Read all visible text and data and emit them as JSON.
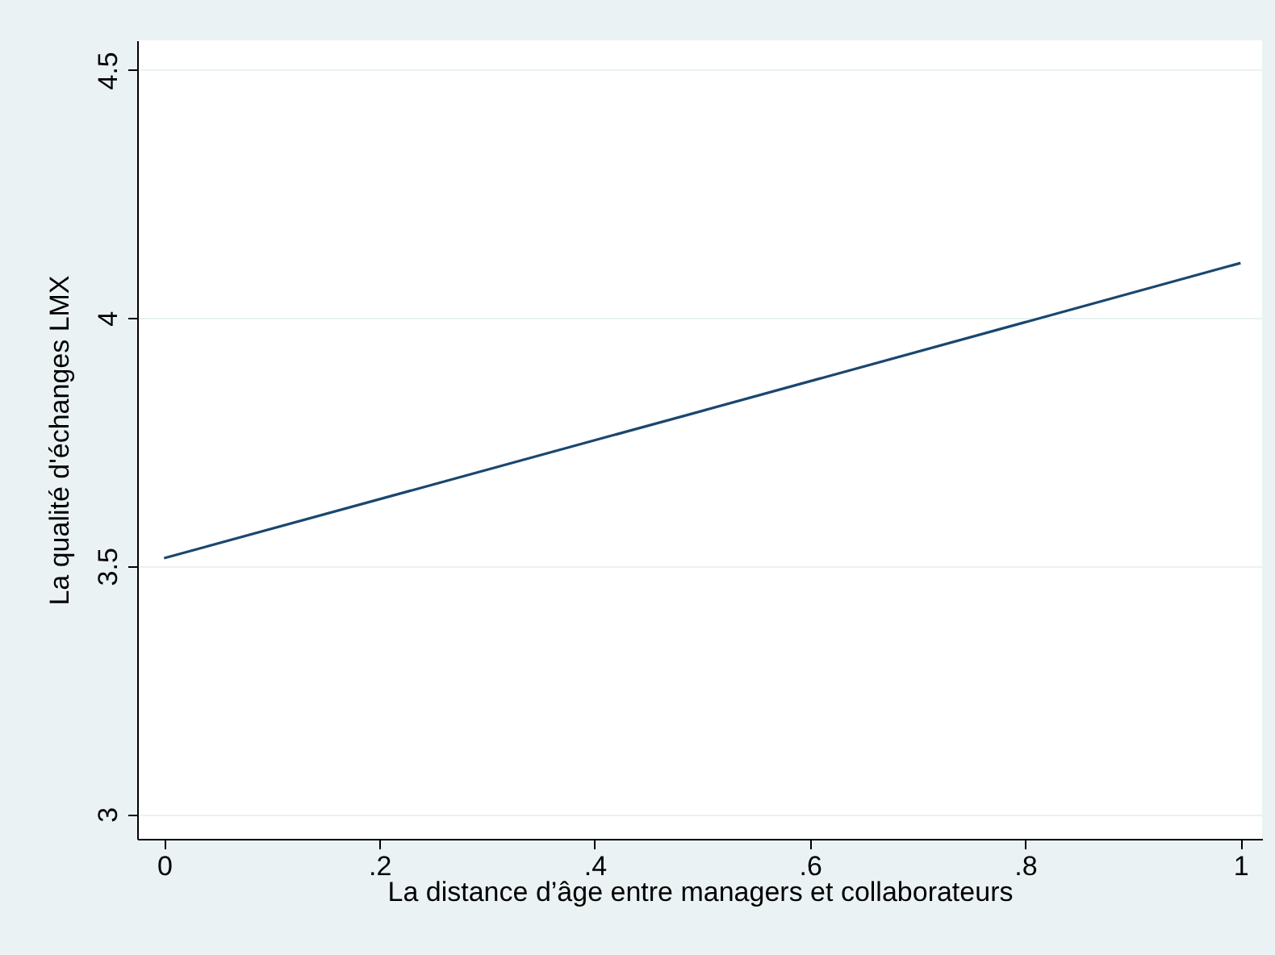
{
  "chart_data": {
    "type": "line",
    "xlabel": "La distance d’âge entre managers et collaborateurs",
    "ylabel": "La qualité d'échanges LMX",
    "x": [
      0,
      0.5,
      1
    ],
    "series": [
      {
        "color": "#1a476f",
        "values": [
          3.516,
          3.813,
          4.111
        ]
      }
    ],
    "xlim": [
      -0.025,
      1.02
    ],
    "ylim": [
      2.95,
      4.56
    ],
    "xticks": [
      0,
      {
        "value": 0.2,
        "label": ".2"
      },
      {
        "value": 0.4,
        "label": ".4"
      },
      {
        "value": 0.6,
        "label": ".6"
      },
      {
        "value": 0.8,
        "label": ".8"
      },
      1
    ],
    "yticks": [
      3,
      3.5,
      4,
      4.5
    ],
    "grid": "y",
    "marker": "none",
    "line_style": "solid"
  }
}
